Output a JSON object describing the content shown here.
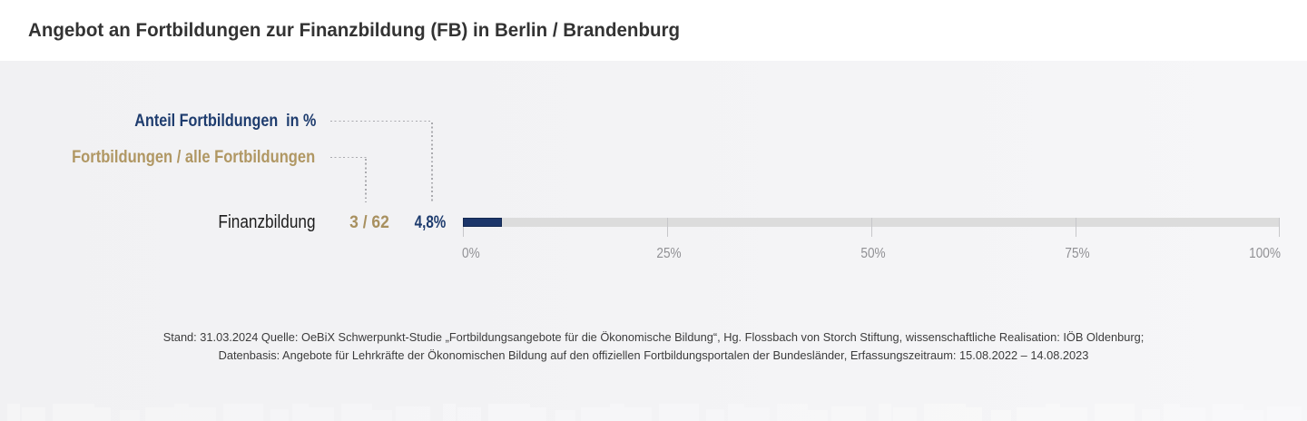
{
  "title": "Angebot an Fortbildungen zur Finanzbildung (FB) in Berlin / Brandenburg",
  "legend": {
    "share_label": "Anteil Fortbildungen  in %",
    "ratio_label": "Fortbildungen / alle Fortbildungen"
  },
  "row": {
    "category": "Finanzbildung",
    "ratio": "3 / 62",
    "share": "4,8%"
  },
  "axis": {
    "ticks": [
      "0%",
      "25%",
      "50%",
      "75%",
      "100%"
    ]
  },
  "footer": {
    "line1": "Stand: 31.03.2024 Quelle: OeBiX Schwerpunkt-Studie „Fortbildungsangebote für die Ökonomische Bildung“, Hg. Flossbach von Storch Stiftung, wissenschaftliche Realisation: IÖB Oldenburg;",
    "line2": "Datenbasis: Angebote für Lehrkräfte der Ökonomischen Bildung auf den offiziellen Fortbildungsportalen der Bundesländer, Erfassungszeitraum: 15.08.2022 – 14.08.2023"
  },
  "colors": {
    "navy": "#1e3c6e",
    "bar_navy": "#1c366a",
    "gold": "#a8905f",
    "gold_label": "#b09763",
    "track_gray": "#dcdcdc",
    "title_gray": "#333333",
    "axis_label_gray": "#909094",
    "background": "#f3f3f5",
    "header_background": "#ffffff"
  },
  "chart_data": {
    "type": "bar",
    "orientation": "horizontal",
    "title": "Angebot an Fortbildungen zur Finanzbildung (FB) in Berlin / Brandenburg",
    "categories": [
      "Finanzbildung"
    ],
    "values": [
      4.8
    ],
    "value_labels": [
      "4,8%"
    ],
    "ratio_labels": [
      "3 / 62"
    ],
    "counts": [
      {
        "fortbildungen": 3,
        "alle_fortbildungen": 62
      }
    ],
    "xlabel": "Anteil Fortbildungen in %",
    "xlim": [
      0,
      100
    ],
    "xticks": [
      0,
      25,
      50,
      75,
      100
    ],
    "xtick_labels": [
      "0%",
      "25%",
      "50%",
      "75%",
      "100%"
    ],
    "grid": "tick-marks-below-axis",
    "legend_position": "upper-left",
    "annotation": "Fortbildungen / alle Fortbildungen"
  }
}
